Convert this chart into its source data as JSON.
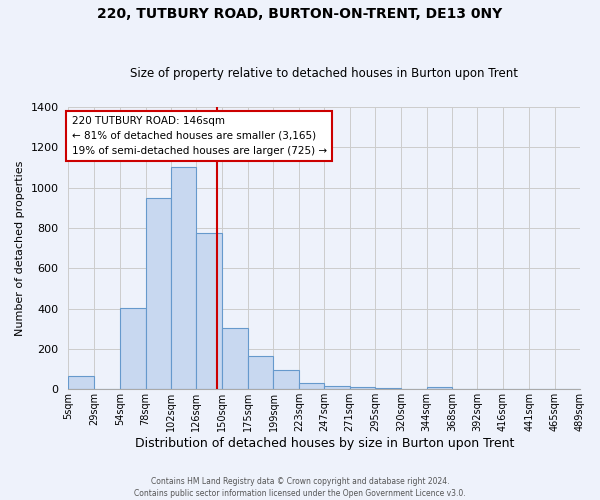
{
  "title": "220, TUTBURY ROAD, BURTON-ON-TRENT, DE13 0NY",
  "subtitle": "Size of property relative to detached houses in Burton upon Trent",
  "xlabel": "Distribution of detached houses by size in Burton upon Trent",
  "ylabel": "Number of detached properties",
  "bin_edges": [
    5,
    29,
    54,
    78,
    102,
    126,
    150,
    175,
    199,
    223,
    247,
    271,
    295,
    320,
    344,
    368,
    392,
    416,
    441,
    465,
    489
  ],
  "bin_labels": [
    "5sqm",
    "29sqm",
    "54sqm",
    "78sqm",
    "102sqm",
    "126sqm",
    "150sqm",
    "175sqm",
    "199sqm",
    "223sqm",
    "247sqm",
    "271sqm",
    "295sqm",
    "320sqm",
    "344sqm",
    "368sqm",
    "392sqm",
    "416sqm",
    "441sqm",
    "465sqm",
    "489sqm"
  ],
  "counts": [
    65,
    0,
    405,
    950,
    1105,
    775,
    305,
    165,
    95,
    32,
    15,
    12,
    8,
    0,
    12,
    0,
    0,
    0,
    0,
    0
  ],
  "bar_color": "#c8d8f0",
  "bar_edge_color": "#6699cc",
  "vline_x": 146,
  "vline_color": "#cc0000",
  "annotation_line1": "220 TUTBURY ROAD: 146sqm",
  "annotation_line2": "← 81% of detached houses are smaller (3,165)",
  "annotation_line3": "19% of semi-detached houses are larger (725) →",
  "annotation_box_color": "#ffffff",
  "annotation_box_edge_color": "#cc0000",
  "ylim": [
    0,
    1400
  ],
  "yticks": [
    0,
    200,
    400,
    600,
    800,
    1000,
    1200,
    1400
  ],
  "grid_color": "#cccccc",
  "background_color": "#eef2fb",
  "plot_bg_color": "#eef2fb",
  "footer_line1": "Contains HM Land Registry data © Crown copyright and database right 2024.",
  "footer_line2": "Contains public sector information licensed under the Open Government Licence v3.0."
}
